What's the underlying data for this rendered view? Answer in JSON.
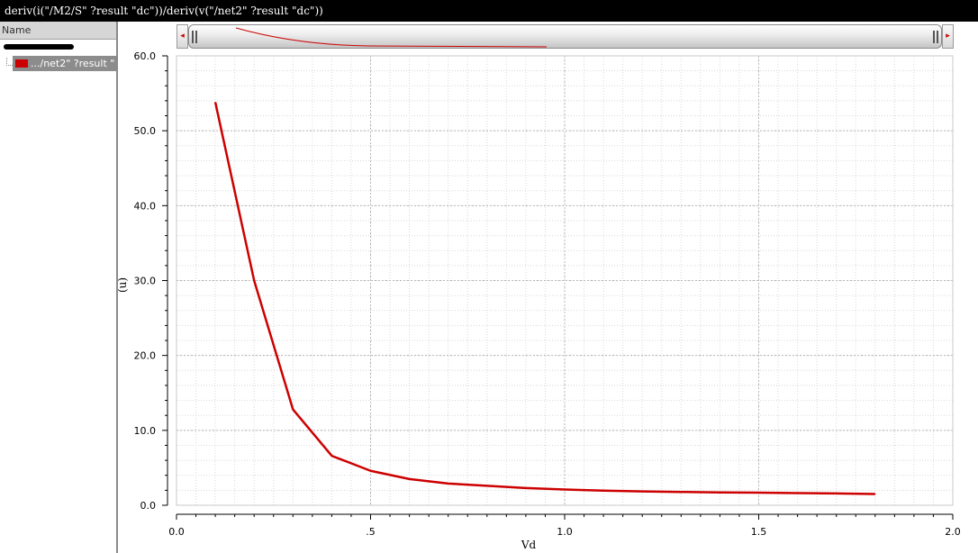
{
  "window": {
    "title": "deriv(i(\"/M2/S\" ?result \"dc\"))/deriv(v(\"/net2\" ?result \"dc\"))"
  },
  "legend_panel": {
    "column_header": "Name",
    "trace_label": ".../net2\" ?result \"",
    "trace_color": "#cc0000"
  },
  "scrollbar": {
    "left_arrow": "◂",
    "right_arrow": "▸"
  },
  "chart_data": {
    "type": "line",
    "title": "",
    "xlabel": "Vd",
    "ylabel": "(u)",
    "xlim": [
      0.0,
      2.0
    ],
    "ylim": [
      0.0,
      60.0
    ],
    "grid": true,
    "x_ticks": [
      "0.0",
      ".5",
      "1.0",
      "1.5",
      "2.0"
    ],
    "y_ticks": [
      "0.0",
      "10.0",
      "20.0",
      "30.0",
      "40.0",
      "50.0",
      "60.0"
    ],
    "series": [
      {
        "color": "#cc0000",
        "x": [
          0.1,
          0.2,
          0.3,
          0.4,
          0.5,
          0.6,
          0.7,
          0.8,
          0.9,
          1.0,
          1.1,
          1.2,
          1.3,
          1.4,
          1.5,
          1.6,
          1.7,
          1.8
        ],
        "y": [
          53.8,
          30.0,
          12.8,
          6.6,
          4.6,
          3.5,
          2.9,
          2.6,
          2.3,
          2.1,
          1.95,
          1.85,
          1.78,
          1.72,
          1.68,
          1.63,
          1.58,
          1.5
        ]
      }
    ]
  }
}
